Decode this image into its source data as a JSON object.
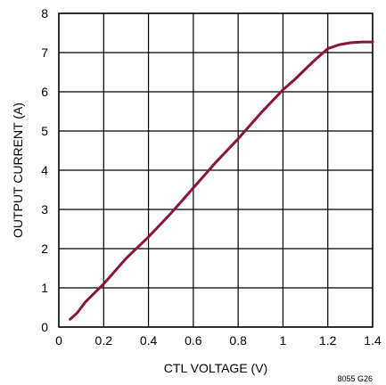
{
  "chart_data": {
    "type": "line",
    "title": "",
    "xlabel": "CTL VOLTAGE (V)",
    "ylabel": "OUTPUT CURRENT (A)",
    "xlim": [
      0,
      1.4
    ],
    "ylim": [
      0,
      8
    ],
    "x_ticks": [
      0,
      0.2,
      0.4,
      0.6,
      0.8,
      1,
      1.2,
      1.4
    ],
    "x_tick_labels": [
      "0",
      "0.2",
      "0.4",
      "0.6",
      "0.8",
      "1",
      "1.2",
      "1.4"
    ],
    "y_ticks": [
      0,
      1,
      2,
      3,
      4,
      5,
      6,
      7,
      8
    ],
    "y_tick_labels": [
      "0",
      "1",
      "2",
      "3",
      "4",
      "5",
      "6",
      "7",
      "8"
    ],
    "grid": true,
    "series": [
      {
        "color": "#8b1538",
        "x": [
          0.05,
          0.08,
          0.12,
          0.2,
          0.3,
          0.4,
          0.5,
          0.6,
          0.7,
          0.8,
          0.9,
          1.0,
          1.05,
          1.1,
          1.15,
          1.2,
          1.25,
          1.3,
          1.35,
          1.4
        ],
        "y": [
          0.2,
          0.35,
          0.65,
          1.1,
          1.75,
          2.3,
          2.9,
          3.55,
          4.2,
          4.8,
          5.45,
          6.05,
          6.3,
          6.58,
          6.85,
          7.1,
          7.2,
          7.25,
          7.27,
          7.27
        ]
      }
    ]
  },
  "figure_id": "8055 G26"
}
